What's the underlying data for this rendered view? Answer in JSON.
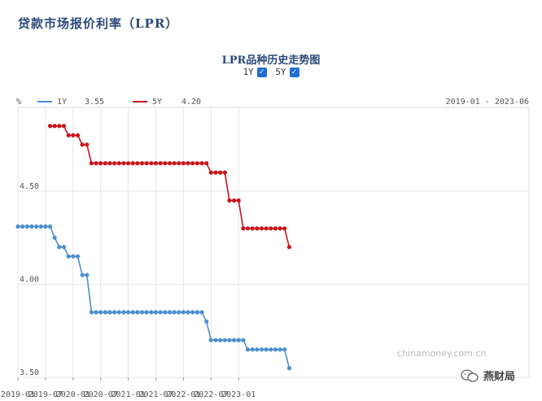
{
  "header": {
    "title": "贷款市场报价利率（LPR）"
  },
  "chart_header": {
    "title": "LPR品种历史走势图",
    "toggle_1y": "1Y",
    "toggle_5y": "5Y",
    "check_glyph": "✓"
  },
  "legend": {
    "unit": "%",
    "series_1y_label": "1Y",
    "series_1y_value": "3.55",
    "series_5y_label": "5Y",
    "series_5y_value": "4.20",
    "date_range": "2019-01 - 2023-06"
  },
  "watermark": "chinamoney.com.cn",
  "wechat": {
    "account": "燕财局",
    "icon": "wechat-icon"
  },
  "chart_data": {
    "type": "line",
    "y_ticks": [
      "4.50",
      "4.00",
      "3.50"
    ],
    "x_ticks": [
      "2019-01",
      "2019-07",
      "2020-01",
      "2020-07",
      "2021-01",
      "2021-07",
      "2022-01",
      "2022-07",
      "2023-01"
    ],
    "ylim": [
      3.5,
      4.95
    ],
    "colors": {
      "1Y": "#4a8fd0",
      "5Y": "#c8141b"
    },
    "series": [
      {
        "name": "1Y",
        "values": [
          4.31,
          4.31,
          4.31,
          4.31,
          4.31,
          4.31,
          4.31,
          4.31,
          4.25,
          4.2,
          4.2,
          4.15,
          4.15,
          4.15,
          4.05,
          4.05,
          3.85,
          3.85,
          3.85,
          3.85,
          3.85,
          3.85,
          3.85,
          3.85,
          3.85,
          3.85,
          3.85,
          3.85,
          3.85,
          3.85,
          3.85,
          3.85,
          3.85,
          3.85,
          3.85,
          3.85,
          3.85,
          3.85,
          3.85,
          3.85,
          3.85,
          3.8,
          3.7,
          3.7,
          3.7,
          3.7,
          3.7,
          3.7,
          3.7,
          3.7,
          3.65,
          3.65,
          3.65,
          3.65,
          3.65,
          3.65,
          3.65,
          3.65,
          3.65,
          3.55
        ]
      },
      {
        "name": "5Y",
        "values": [
          null,
          null,
          null,
          null,
          null,
          null,
          null,
          4.85,
          4.85,
          4.85,
          4.85,
          4.8,
          4.8,
          4.8,
          4.75,
          4.75,
          4.65,
          4.65,
          4.65,
          4.65,
          4.65,
          4.65,
          4.65,
          4.65,
          4.65,
          4.65,
          4.65,
          4.65,
          4.65,
          4.65,
          4.65,
          4.65,
          4.65,
          4.65,
          4.65,
          4.65,
          4.65,
          4.65,
          4.65,
          4.65,
          4.65,
          4.65,
          4.6,
          4.6,
          4.6,
          4.6,
          4.45,
          4.45,
          4.45,
          4.3,
          4.3,
          4.3,
          4.3,
          4.3,
          4.3,
          4.3,
          4.3,
          4.3,
          4.3,
          4.2
        ]
      }
    ]
  }
}
